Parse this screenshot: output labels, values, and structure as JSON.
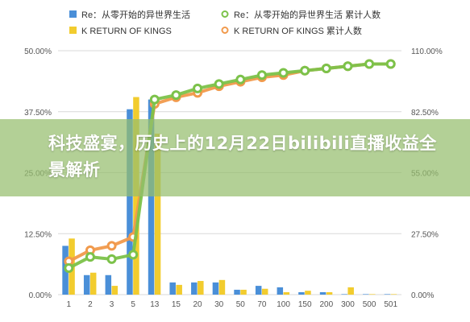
{
  "banner": {
    "text": "科技盛宴，历史上的12月22日bilibili直播收益全景解析"
  },
  "colors": {
    "bar_series_1": "#4a8fd8",
    "bar_series_2": "#f2cc2e",
    "line_series_1": "#7cc24a",
    "line_series_2": "#f19a4c",
    "grid": "#d9d9d9",
    "axis_text": "#555555"
  },
  "chart_data": {
    "type": "bar",
    "categories": [
      "1",
      "2",
      "3",
      "5",
      "13",
      "15",
      "20",
      "30",
      "50",
      "70",
      "100",
      "150",
      "200",
      "300",
      "500",
      "501"
    ],
    "yleft": {
      "ylim": [
        0,
        50
      ],
      "ticks": [
        "0.00%",
        "12.50%",
        "25.00%",
        "37.50%",
        "50.00%"
      ]
    },
    "yright": {
      "ylim": [
        0,
        110
      ],
      "ticks": [
        "0.00%",
        "27.50%",
        "55.00%",
        "82.50%",
        "110.00%"
      ]
    },
    "grid": true,
    "legend": "top",
    "series": [
      {
        "name": "Re：从零开始的异世界生活",
        "kind": "bar",
        "axis": "left",
        "values": [
          10,
          4,
          4,
          38,
          40,
          2.5,
          2.5,
          2.5,
          1,
          1.8,
          1.5,
          0.5,
          0.5,
          0.1,
          0.1,
          0.1
        ]
      },
      {
        "name": "K RETURN OF KINGS",
        "kind": "bar",
        "axis": "left",
        "values": [
          11.5,
          4.5,
          1.8,
          40.5,
          33,
          2,
          2.8,
          3,
          1,
          1.2,
          0.5,
          0.8,
          0.5,
          1.5,
          0.1,
          0.1
        ]
      },
      {
        "name": "Re：从零开始的异世界生活 累计人数",
        "kind": "line",
        "axis": "right",
        "values": [
          12,
          17,
          16,
          18,
          88,
          90,
          93,
          95,
          97,
          99,
          100,
          101,
          102,
          103,
          104,
          104
        ]
      },
      {
        "name": "K RETURN OF KINGS 累计人数",
        "kind": "line",
        "axis": "right",
        "values": [
          15,
          20,
          22,
          26,
          86,
          89,
          91,
          94,
          96,
          98,
          99,
          101,
          102,
          103,
          104,
          104
        ]
      }
    ]
  }
}
